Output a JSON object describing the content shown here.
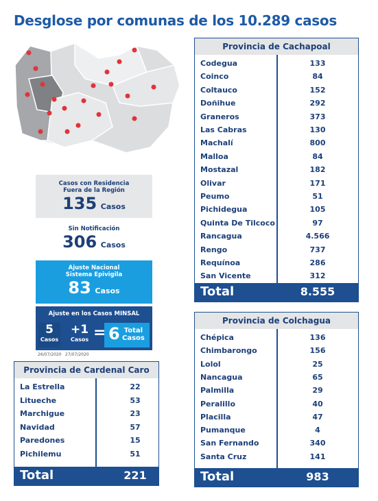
{
  "title": "Desglose por comunas de los 10.289 casos",
  "cachapoal": {
    "title": "Provincia de Cachapoal",
    "rows": [
      [
        "Codegua",
        "133"
      ],
      [
        "Coinco",
        "84"
      ],
      [
        "Coltauco",
        "152"
      ],
      [
        "Doñihue",
        "292"
      ],
      [
        "Graneros",
        "373"
      ],
      [
        "Las Cabras",
        "130"
      ],
      [
        "Machalí",
        "800"
      ],
      [
        "Malloa",
        "84"
      ],
      [
        "Mostazal",
        "182"
      ],
      [
        "Olivar",
        "171"
      ],
      [
        "Peumo",
        "51"
      ],
      [
        "Pichidegua",
        "105"
      ],
      [
        "Quinta De Tilcoco",
        "97"
      ],
      [
        "Rancagua",
        "4.566"
      ],
      [
        "Rengo",
        "737"
      ],
      [
        "Requínoa",
        "286"
      ],
      [
        "San Vicente",
        "312"
      ]
    ],
    "total_label": "Total",
    "total": "8.555"
  },
  "colchagua": {
    "title": "Provincia de Colchagua",
    "rows": [
      [
        "Chépica",
        "136"
      ],
      [
        "Chimbarongo",
        "156"
      ],
      [
        "Lolol",
        "25"
      ],
      [
        "Nancagua",
        "65"
      ],
      [
        "Palmilla",
        "29"
      ],
      [
        "Peralillo",
        "40"
      ],
      [
        "Placilla",
        "47"
      ],
      [
        "Pumanque",
        "4"
      ],
      [
        "San Fernando",
        "340"
      ],
      [
        "Santa Cruz",
        "141"
      ]
    ],
    "total_label": "Total",
    "total": "983"
  },
  "cardenal_caro": {
    "title": "Provincia de Cardenal Caro",
    "rows": [
      [
        "La Estrella",
        "22"
      ],
      [
        "Litueche",
        "53"
      ],
      [
        "Marchigue",
        "23"
      ],
      [
        "Navidad",
        "57"
      ],
      [
        "Paredones",
        "15"
      ],
      [
        "Pichilemu",
        "51"
      ]
    ],
    "total_label": "Total",
    "total": "221"
  },
  "fuera_region": {
    "line1": "Casos con Residencia",
    "line2": "Fuera de la Región",
    "value": "135",
    "unit": "Casos"
  },
  "sin_notificacion": {
    "label": "Sin Notificación",
    "value": "306",
    "unit": "Casos"
  },
  "ajuste_nacional": {
    "line1": "Ajuste Nacional",
    "line2": "Sistema Epivigila",
    "value": "83",
    "unit": "Casos"
  },
  "ajuste_minsal": {
    "title": "Ajuste en los Casos MINSAL",
    "a": "5",
    "a_unit": "Casos",
    "a_date": "26/07/2020",
    "b": "+1",
    "b_unit": "Casos",
    "b_date": "27/07/2020",
    "eq": "=",
    "total": "6",
    "total_unit_1": "Total",
    "total_unit_2": "Casos"
  }
}
